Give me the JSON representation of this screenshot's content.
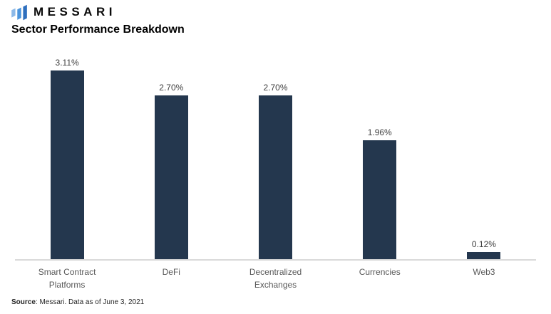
{
  "header": {
    "logo_text": "MESSARI",
    "logo_icon": "messari-logo-icon",
    "logo_colors": [
      "#8CB9E8",
      "#4A94DC",
      "#2E6FBE"
    ],
    "title": "Sector Performance Breakdown"
  },
  "chart_data": {
    "type": "bar",
    "title": "Sector Performance Breakdown",
    "categories": [
      "Smart Contract Platforms",
      "DeFi",
      "Decentralized Exchanges",
      "Currencies",
      "Web3"
    ],
    "values": [
      3.11,
      2.7,
      2.7,
      1.96,
      0.12
    ],
    "value_labels": [
      "3.11%",
      "2.70%",
      "2.70%",
      "1.96%",
      "0.12%"
    ],
    "xlabel": "",
    "ylabel": "",
    "ylim": [
      0,
      3.3
    ],
    "grid": false,
    "legend": false,
    "bar_color": "#24374E",
    "axis_line_color": "#D9D9D9"
  },
  "footer": {
    "source_label": "Source",
    "source_text": ": Messari. Data as of June 3, 2021"
  },
  "colors": {
    "bar": "#24374E",
    "axis_line": "#D9D9D9",
    "value_label": "#404040",
    "category_label": "#595959",
    "title": "#000000"
  }
}
